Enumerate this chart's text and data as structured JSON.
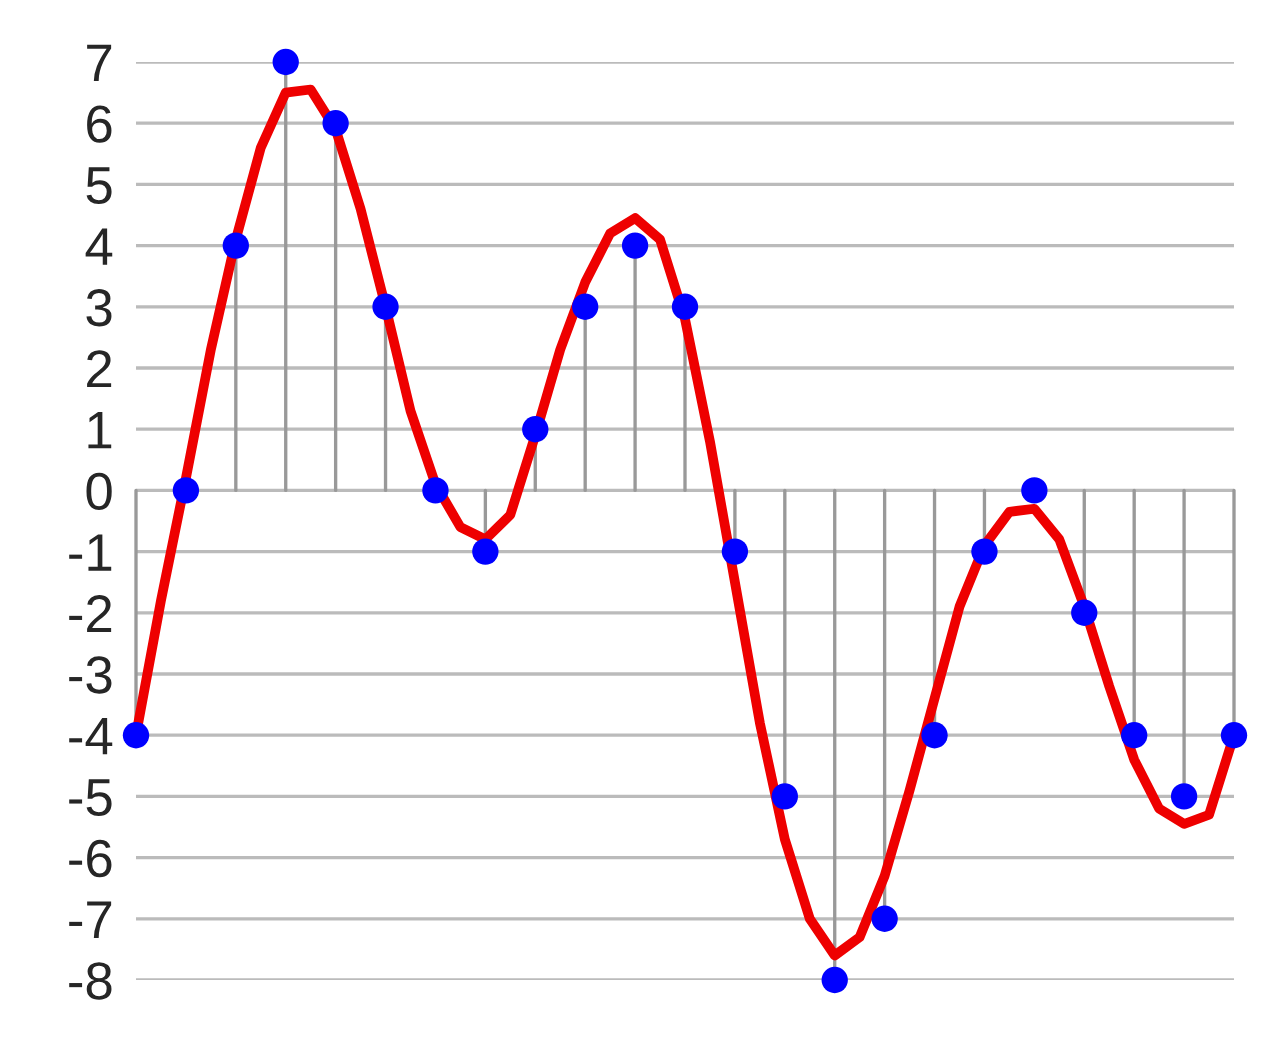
{
  "chart_data": {
    "type": "lollipop",
    "categories": [
      null,
      null,
      null,
      null,
      null,
      null,
      null,
      null,
      null,
      null,
      null,
      null,
      null,
      null,
      null,
      null,
      null,
      null,
      null,
      null,
      null,
      null,
      null,
      null,
      null,
      null,
      null,
      null,
      null,
      null,
      null,
      null,
      null,
      null,
      null,
      null,
      null,
      null,
      null,
      null,
      null,
      null,
      null,
      null,
      null
    ],
    "series": [
      {
        "color": "#0000ff",
        "marker": "circle",
        "values": [
          -4,
          null,
          0,
          null,
          4,
          null,
          7,
          null,
          6,
          null,
          3,
          null,
          0,
          null,
          -1,
          null,
          1,
          null,
          3,
          null,
          4,
          null,
          3,
          null,
          -1,
          null,
          -5,
          null,
          -8,
          null,
          -7,
          null,
          -4,
          null,
          -1,
          null,
          0,
          null,
          -2,
          null,
          -4,
          null,
          -5,
          null,
          -4
        ]
      },
      {
        "type": "line",
        "color": "#ee0000",
        "values": [
          -4,
          -1.8,
          0.2,
          2.3,
          4.1,
          5.6,
          6.5,
          6.55,
          5.9,
          4.6,
          3.0,
          1.3,
          0.1,
          -0.6,
          -0.8,
          -0.4,
          0.9,
          2.3,
          3.4,
          4.2,
          4.45,
          4.1,
          2.8,
          0.8,
          -1.5,
          -3.8,
          -5.7,
          -7.0,
          -7.6,
          -7.3,
          -6.3,
          -4.9,
          -3.4,
          -1.9,
          -0.9,
          -0.35,
          -0.3,
          -0.8,
          -1.9,
          -3.2,
          -4.4,
          -5.2,
          -5.45,
          -5.3,
          -4.0
        ]
      }
    ],
    "ylim": [
      -8,
      7
    ],
    "yticks": [
      -8,
      -7,
      -6,
      -5,
      -4,
      -3,
      -2,
      -1,
      0,
      1,
      2,
      3,
      4,
      5,
      6,
      7
    ],
    "grid": "y",
    "tick_labels": "y"
  }
}
